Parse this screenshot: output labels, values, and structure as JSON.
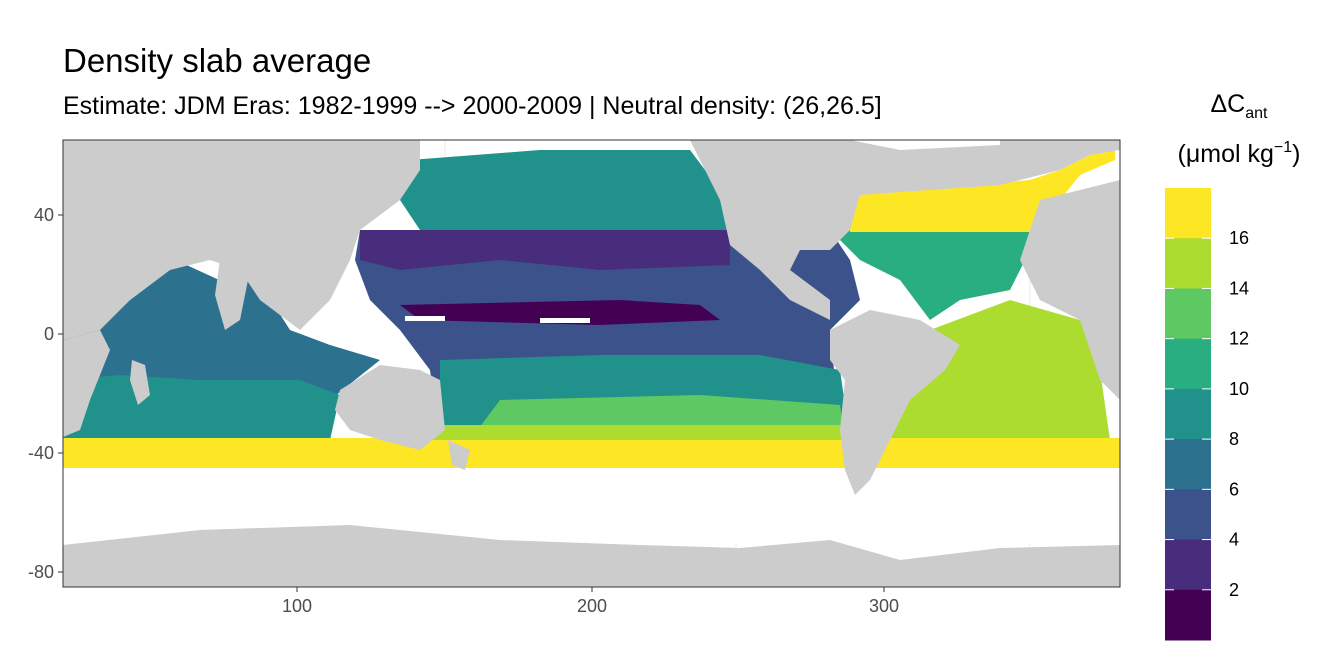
{
  "title": "Density slab average",
  "subtitle": "Estimate: JDM Eras: 1982-1999 --> 2000-2009 | Neutral density: (26,26.5]",
  "map": {
    "land_color": "#cccccc",
    "no_data_color": "#ffffff",
    "x_axis": {
      "range": [
        20,
        380
      ],
      "ticks": [
        100,
        200,
        300
      ],
      "tick_labels": [
        "100",
        "200",
        "300"
      ]
    },
    "y_axis": {
      "range": [
        -85,
        65
      ],
      "ticks": [
        40,
        0,
        -40,
        -80
      ],
      "tick_labels": [
        "40",
        "0",
        "-40",
        "-80"
      ]
    }
  },
  "legend": {
    "title_symbol": "ΔC",
    "title_subscript": "ant",
    "unit": "(μmol kg",
    "unit_superscript": "−1",
    "unit_close": ")",
    "palette": [
      "#fde725",
      "#addc30",
      "#5ec962",
      "#28ae80",
      "#21918c",
      "#2c728e",
      "#3b528b",
      "#472d7b",
      "#440154"
    ],
    "breaks": [
      16,
      14,
      12,
      10,
      8,
      6,
      4,
      2
    ],
    "break_labels": [
      "16",
      "14",
      "12",
      "10",
      "8",
      "6",
      "4",
      "2"
    ]
  }
}
